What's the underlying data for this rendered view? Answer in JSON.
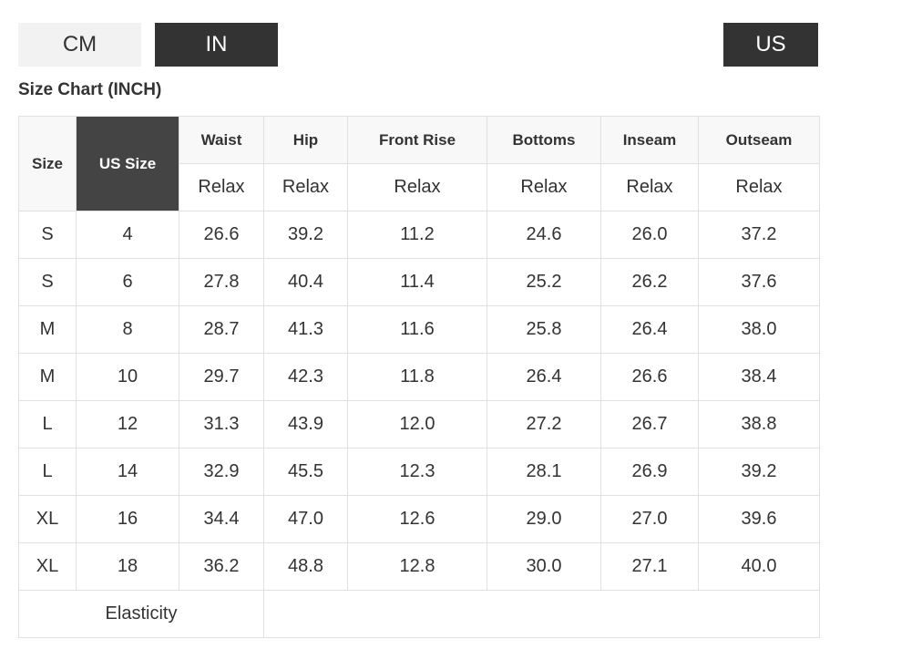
{
  "unit_tabs": [
    "CM",
    "IN"
  ],
  "region_button": "US",
  "size_chart": {
    "title": "Size Chart (INCH)",
    "headers": [
      "Size",
      "US Size",
      "Waist",
      "Hip",
      "Front Rise",
      "Bottoms",
      "Inseam",
      "Outseam"
    ],
    "subheaders": [
      "Relax",
      "Relax",
      "Relax",
      "Relax",
      "Relax",
      "Relax"
    ],
    "rows": [
      [
        "S",
        "4",
        "26.6",
        "39.2",
        "11.2",
        "24.6",
        "26.0",
        "37.2"
      ],
      [
        "S",
        "6",
        "27.8",
        "40.4",
        "11.4",
        "25.2",
        "26.2",
        "37.6"
      ],
      [
        "M",
        "8",
        "28.7",
        "41.3",
        "11.6",
        "25.8",
        "26.4",
        "38.0"
      ],
      [
        "M",
        "10",
        "29.7",
        "42.3",
        "11.8",
        "26.4",
        "26.6",
        "38.4"
      ],
      [
        "L",
        "12",
        "31.3",
        "43.9",
        "12.0",
        "27.2",
        "26.7",
        "38.8"
      ],
      [
        "L",
        "14",
        "32.9",
        "45.5",
        "12.3",
        "28.1",
        "26.9",
        "39.2"
      ],
      [
        "XL",
        "16",
        "34.4",
        "47.0",
        "12.6",
        "29.0",
        "27.0",
        "39.6"
      ],
      [
        "XL",
        "18",
        "36.2",
        "48.8",
        "12.8",
        "30.0",
        "27.1",
        "40.0"
      ]
    ],
    "footer": "Elasticity"
  }
}
